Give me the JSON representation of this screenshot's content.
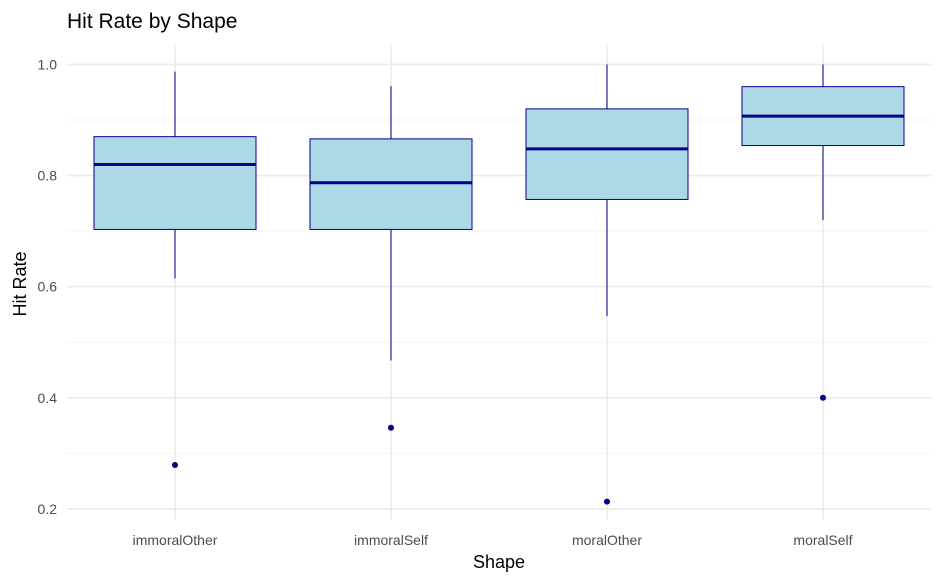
{
  "chart_data": {
    "type": "box",
    "title": "Hit Rate by Shape",
    "xlabel": "Shape",
    "ylabel": "Hit Rate",
    "ylim": [
      0.18,
      1.035
    ],
    "yticks": [
      0.2,
      0.4,
      0.6,
      0.8,
      1.0
    ],
    "ytick_labels": [
      "0.2",
      "0.4",
      "0.6",
      "0.8",
      "1.0"
    ],
    "grid": true,
    "categories": [
      "immoralOther",
      "immoralSelf",
      "moralOther",
      "moralSelf"
    ],
    "boxes": [
      {
        "category": "immoralOther",
        "whisker_low": 0.615,
        "q1": 0.703,
        "median": 0.82,
        "q3": 0.87,
        "whisker_high": 0.987,
        "outliers": [
          0.279
        ]
      },
      {
        "category": "immoralSelf",
        "whisker_low": 0.467,
        "q1": 0.703,
        "median": 0.787,
        "q3": 0.866,
        "whisker_high": 0.961,
        "outliers": [
          0.346
        ]
      },
      {
        "category": "moralOther",
        "whisker_low": 0.547,
        "q1": 0.757,
        "median": 0.848,
        "q3": 0.92,
        "whisker_high": 1.0,
        "outliers": [
          0.213
        ]
      },
      {
        "category": "moralSelf",
        "whisker_low": 0.72,
        "q1": 0.854,
        "median": 0.907,
        "q3": 0.96,
        "whisker_high": 1.0,
        "outliers": [
          0.4
        ]
      }
    ],
    "colors": {
      "box_fill": "#add8e6",
      "box_stroke": "#00008b",
      "median": "#00008b",
      "outlier": "#00008b",
      "grid": "#ebebeb"
    }
  }
}
